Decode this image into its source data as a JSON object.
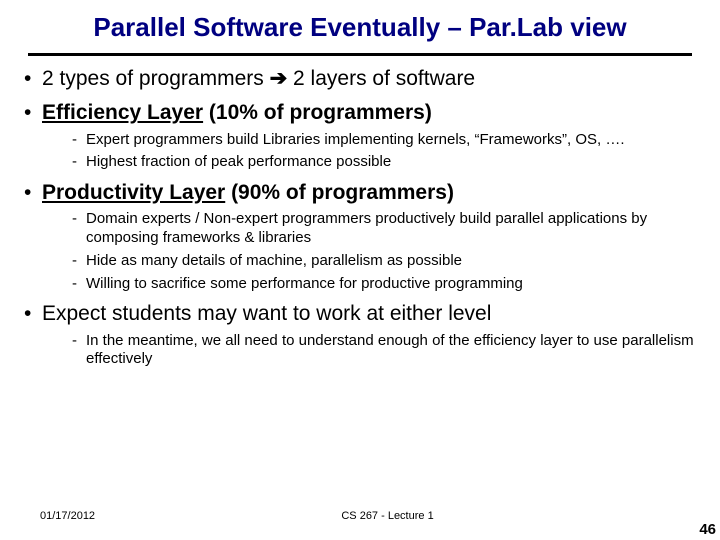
{
  "title": "Parallel Software Eventually – Par.Lab view",
  "bullets": [
    {
      "level": 1,
      "bold": false,
      "prefix": "2 types of programmers ",
      "arrow": "➔",
      "suffix": " 2 layers of software"
    },
    {
      "level": 1,
      "bold": true,
      "underlined": "Efficiency Layer",
      "rest": " (10% of programmers)"
    },
    {
      "level": 2,
      "text": "Expert programmers build Libraries implementing kernels, “Frameworks”, OS, …."
    },
    {
      "level": 2,
      "text": "Highest fraction of peak performance possible"
    },
    {
      "level": 1,
      "bold": true,
      "underlined": "Productivity Layer",
      "rest": " (90% of programmers)"
    },
    {
      "level": 2,
      "text": "Domain experts / Non-expert programmers productively build parallel applications by composing frameworks & libraries"
    },
    {
      "level": 2,
      "text": "Hide as many details of machine, parallelism as possible"
    },
    {
      "level": 2,
      "text": "Willing to sacrifice some performance for productive programming"
    },
    {
      "level": 1,
      "bold": false,
      "text": "Expect students may want to work at either level"
    },
    {
      "level": 2,
      "text": "In the meantime, we all need to understand enough of the efficiency layer to use parallelism effectively"
    }
  ],
  "footer": {
    "date": "01/17/2012",
    "center": "CS 267 - Lecture 1"
  },
  "pagenum": "46",
  "colors": {
    "title": "#000080",
    "rule": "#000000",
    "text": "#000000",
    "bg": "#ffffff"
  }
}
